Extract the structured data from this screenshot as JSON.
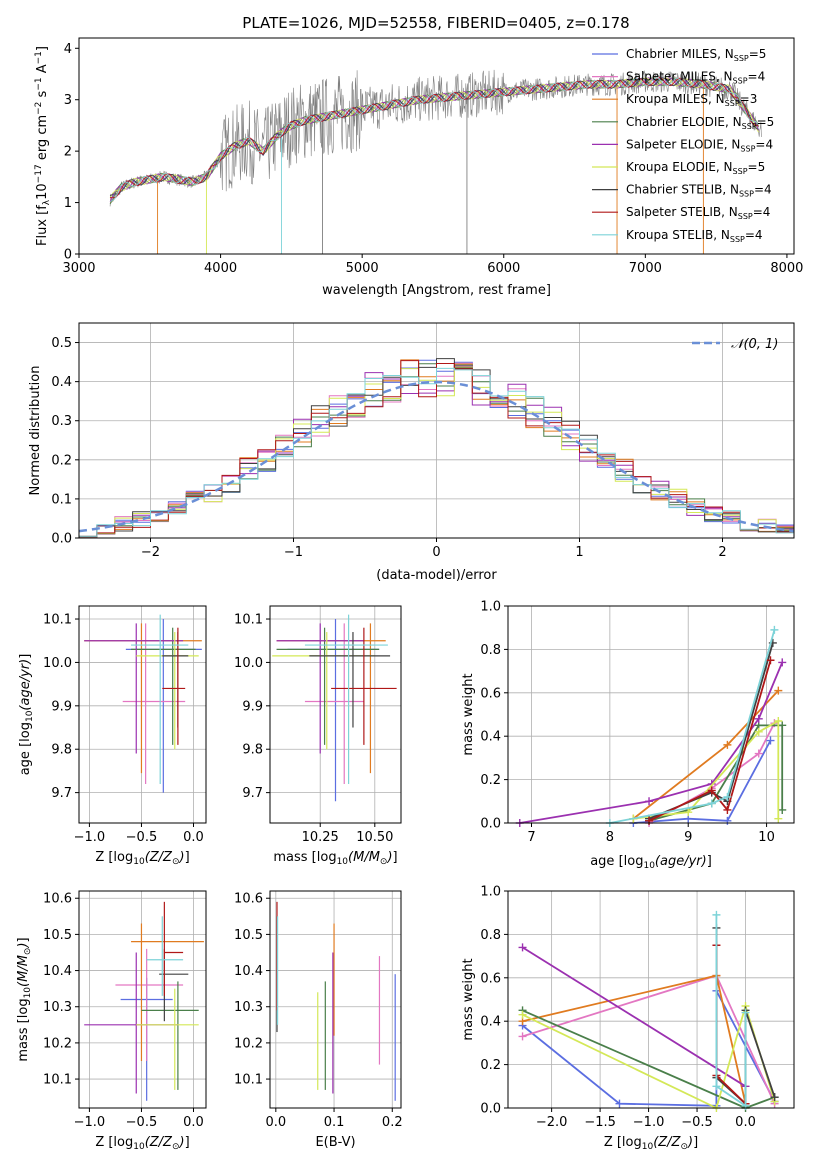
{
  "figure_title": "PLATE=1026, MJD=52558, FIBERID=0405, z=0.178",
  "colors": {
    "chabrier_miles": "#5b6ee1",
    "salpeter_miles": "#e377c2",
    "kroupa_miles": "#e07b20",
    "chabrier_elodie": "#4a7f4a",
    "salpeter_elodie": "#9b30b0",
    "kroupa_elodie": "#d4e857",
    "chabrier_stelib": "#404040",
    "salpeter_stelib": "#b01818",
    "kroupa_stelib": "#7dd3d8",
    "data": "#808080",
    "normal": "#6a8fd6",
    "grid": "#b0b0b0"
  },
  "chart_data": [
    {
      "id": "spectrum",
      "type": "line",
      "xlabel": "wavelength [Angstrom, rest frame]",
      "ylabel": "Flux [f",
      "xlim": [
        3000,
        8050
      ],
      "ylim": [
        0,
        4.2
      ],
      "xticks": [
        "3000",
        "4000",
        "5000",
        "6000",
        "7000",
        "8000"
      ],
      "yticks": [
        "0",
        "1",
        "2",
        "3",
        "4"
      ],
      "legend": [
        "Chabrier MILES, NSSP=5",
        "Salpeter MILES, NSSP=4",
        "Kroupa MILES, NSSP=3",
        "Chabrier ELODIE, NSSP=5",
        "Salpeter ELODIE, NSSP=4",
        "Kroupa ELODIE, NSSP=5",
        "Chabrier STELIB, NSSP=4",
        "Salpeter STELIB, NSSP=4",
        "Kroupa STELIB, NSSP=4"
      ],
      "model_x": [
        3220,
        3300,
        3400,
        3500,
        3600,
        3700,
        3800,
        3900,
        4000,
        4100,
        4200,
        4300,
        4400,
        4500,
        4600,
        4700,
        4800,
        4900,
        5000,
        5200,
        5400,
        5600,
        5800,
        6000,
        6200,
        6400,
        6600,
        6800,
        7000,
        7200,
        7400,
        7600,
        7800
      ],
      "model_y": [
        1.05,
        1.3,
        1.4,
        1.45,
        1.5,
        1.45,
        1.4,
        1.5,
        1.9,
        2.1,
        2.2,
        2.0,
        2.3,
        2.5,
        2.6,
        2.65,
        2.7,
        2.75,
        2.8,
        2.9,
        3.0,
        3.05,
        3.1,
        3.15,
        3.2,
        3.25,
        3.3,
        3.3,
        3.35,
        3.35,
        3.3,
        3.2,
        2.45
      ]
    },
    {
      "id": "residuals",
      "type": "step",
      "xlabel": "(data-model)/error",
      "ylabel": "Normed distribution",
      "xlim": [
        -2.5,
        2.5
      ],
      "ylim": [
        0,
        0.55
      ],
      "xticks": [
        "−2",
        "−1",
        "0",
        "1",
        "2"
      ],
      "yticks": [
        "0.0",
        "0.1",
        "0.2",
        "0.3",
        "0.4",
        "0.5"
      ],
      "legend": [
        "N(0,1)"
      ],
      "bin_width": 0.125
    },
    {
      "id": "age_vs_Z",
      "type": "errorbar",
      "xlabel": "Z [log",
      "ylabel": "age  [log",
      "xlim": [
        -1.1,
        0.12
      ],
      "ylim": [
        9.63,
        10.13
      ],
      "xticks": [
        "−1.0",
        "−0.5",
        "0.0"
      ],
      "yticks": [
        "9.7",
        "9.8",
        "9.9",
        "10.0",
        "10.1"
      ],
      "points": [
        {
          "x": -0.29,
          "xlo": -0.65,
          "xhi": 0.08,
          "y": 10.03,
          "ylo": 9.7,
          "yhi": 10.1,
          "c": "chabrier_miles"
        },
        {
          "x": -0.46,
          "xlo": -0.68,
          "xhi": -0.08,
          "y": 9.91,
          "ylo": 9.72,
          "yhi": 10.09,
          "c": "salpeter_miles"
        },
        {
          "x": -0.5,
          "xlo": -1.05,
          "xhi": 0.08,
          "y": 10.05,
          "ylo": 9.745,
          "yhi": 10.09,
          "c": "kroupa_miles"
        },
        {
          "x": -0.2,
          "xlo": -0.6,
          "xhi": 0.02,
          "y": 10.03,
          "ylo": 9.81,
          "yhi": 10.08,
          "c": "chabrier_elodie"
        },
        {
          "x": -0.55,
          "xlo": -1.05,
          "xhi": -0.1,
          "y": 10.05,
          "ylo": 9.79,
          "yhi": 10.09,
          "c": "salpeter_elodie"
        },
        {
          "x": -0.18,
          "xlo": -0.55,
          "xhi": 0.05,
          "y": 10.015,
          "ylo": 9.8,
          "yhi": 10.07,
          "c": "kroupa_elodie"
        },
        {
          "x": -0.15,
          "xlo": -0.3,
          "xhi": -0.05,
          "y": 10.015,
          "ylo": 9.85,
          "yhi": 10.07,
          "c": "chabrier_stelib"
        },
        {
          "x": -0.15,
          "xlo": -0.3,
          "xhi": -0.08,
          "y": 9.94,
          "ylo": 9.81,
          "yhi": 10.08,
          "c": "salpeter_stelib"
        },
        {
          "x": -0.32,
          "xlo": -0.6,
          "xhi": -0.05,
          "y": 10.04,
          "ylo": 9.72,
          "yhi": 10.11,
          "c": "kroupa_stelib"
        }
      ]
    },
    {
      "id": "age_vs_mass",
      "type": "errorbar",
      "xlabel": "mass [log",
      "ylabel": "",
      "xlim": [
        10.02,
        10.62
      ],
      "ylim": [
        9.63,
        10.13
      ],
      "xticks": [
        "10.25",
        "10.50"
      ],
      "yticks": [
        "9.7",
        "9.8",
        "9.9",
        "10.0",
        "10.1"
      ],
      "points": [
        {
          "x": 10.32,
          "xlo": 10.1,
          "xhi": 10.52,
          "y": 10.03,
          "ylo": 9.68,
          "yhi": 10.1,
          "c": "chabrier_miles"
        },
        {
          "x": 10.36,
          "xlo": 10.18,
          "xhi": 10.45,
          "y": 9.91,
          "ylo": 9.72,
          "yhi": 10.09,
          "c": "salpeter_miles"
        },
        {
          "x": 10.48,
          "xlo": 10.05,
          "xhi": 10.55,
          "y": 10.05,
          "ylo": 9.745,
          "yhi": 10.09,
          "c": "kroupa_miles"
        },
        {
          "x": 10.27,
          "xlo": 10.05,
          "xhi": 10.52,
          "y": 10.03,
          "ylo": 9.81,
          "yhi": 10.08,
          "c": "chabrier_elodie"
        },
        {
          "x": 10.25,
          "xlo": 10.05,
          "xhi": 10.45,
          "y": 10.05,
          "ylo": 9.79,
          "yhi": 10.09,
          "c": "salpeter_elodie"
        },
        {
          "x": 10.28,
          "xlo": 10.03,
          "xhi": 10.5,
          "y": 10.015,
          "ylo": 9.8,
          "yhi": 10.07,
          "c": "kroupa_elodie"
        },
        {
          "x": 10.4,
          "xlo": 10.2,
          "xhi": 10.57,
          "y": 10.015,
          "ylo": 9.85,
          "yhi": 10.07,
          "c": "chabrier_stelib"
        },
        {
          "x": 10.45,
          "xlo": 10.3,
          "xhi": 10.6,
          "y": 9.94,
          "ylo": 9.81,
          "yhi": 10.08,
          "c": "salpeter_stelib"
        },
        {
          "x": 10.38,
          "xlo": 10.18,
          "xhi": 10.56,
          "y": 10.04,
          "ylo": 9.72,
          "yhi": 10.11,
          "c": "kroupa_stelib"
        }
      ]
    },
    {
      "id": "massweight_vs_age",
      "type": "line",
      "xlabel": "age  [log",
      "ylabel": "mass weight",
      "xlim": [
        6.7,
        10.35
      ],
      "ylim": [
        0,
        1.0
      ],
      "xticks": [
        "7",
        "8",
        "9",
        "10"
      ],
      "yticks": [
        "0.0",
        "0.2",
        "0.4",
        "0.6",
        "0.8",
        "1.0"
      ],
      "series": [
        {
          "c": "chabrier_miles",
          "x": [
            8.3,
            9.0,
            9.5,
            10.05
          ],
          "y": [
            0.0,
            0.02,
            0.01,
            0.38
          ]
        },
        {
          "c": "salpeter_miles",
          "x": [
            8.5,
            9.3,
            9.9,
            10.1
          ],
          "y": [
            0.0,
            0.16,
            0.32,
            0.46
          ]
        },
        {
          "c": "kroupa_miles",
          "x": [
            8.3,
            9.5,
            10.15
          ],
          "y": [
            0.02,
            0.36,
            0.61
          ]
        },
        {
          "c": "chabrier_elodie",
          "x": [
            8.5,
            9.3,
            9.9,
            10.2,
            10.2
          ],
          "y": [
            0.01,
            0.09,
            0.45,
            0.45,
            0.06
          ]
        },
        {
          "c": "salpeter_elodie",
          "x": [
            6.85,
            8.5,
            9.3,
            9.9,
            10.2
          ],
          "y": [
            0.0,
            0.1,
            0.18,
            0.48,
            0.74
          ]
        },
        {
          "c": "kroupa_elodie",
          "x": [
            8.3,
            9.0,
            9.9,
            10.15,
            10.15
          ],
          "y": [
            0.02,
            0.05,
            0.42,
            0.47,
            0.02
          ]
        },
        {
          "c": "chabrier_stelib",
          "x": [
            8.5,
            9.3,
            9.5,
            10.08
          ],
          "y": [
            0.02,
            0.14,
            0.1,
            0.83
          ]
        },
        {
          "c": "salpeter_stelib",
          "x": [
            8.5,
            9.3,
            9.5,
            10.05
          ],
          "y": [
            0.01,
            0.15,
            0.06,
            0.75
          ]
        },
        {
          "c": "kroupa_stelib",
          "x": [
            8.0,
            9.3,
            9.5,
            10.1
          ],
          "y": [
            0.0,
            0.09,
            0.12,
            0.89
          ]
        }
      ]
    },
    {
      "id": "mass_vs_Z",
      "type": "errorbar",
      "xlabel": "Z [log",
      "ylabel": "mass [log",
      "xlim": [
        -1.1,
        0.12
      ],
      "ylim": [
        10.02,
        10.62
      ],
      "xticks": [
        "−1.0",
        "−0.5",
        "0.0"
      ],
      "yticks": [
        "10.1",
        "10.2",
        "10.3",
        "10.4",
        "10.5",
        "10.6"
      ],
      "points": [
        {
          "x": -0.45,
          "xlo": -0.7,
          "xhi": -0.2,
          "y": 10.32,
          "ylo": 10.04,
          "yhi": 10.38,
          "c": "chabrier_miles"
        },
        {
          "x": -0.45,
          "xlo": -0.75,
          "xhi": -0.1,
          "y": 10.36,
          "ylo": 10.15,
          "yhi": 10.46,
          "c": "salpeter_miles"
        },
        {
          "x": -0.5,
          "xlo": -0.6,
          "xhi": 0.1,
          "y": 10.48,
          "ylo": 10.15,
          "yhi": 10.53,
          "c": "kroupa_miles"
        },
        {
          "x": -0.15,
          "xlo": -0.5,
          "xhi": 0.05,
          "y": 10.29,
          "ylo": 10.07,
          "yhi": 10.37,
          "c": "chabrier_elodie"
        },
        {
          "x": -0.55,
          "xlo": -1.05,
          "xhi": -0.15,
          "y": 10.25,
          "ylo": 10.06,
          "yhi": 10.45,
          "c": "salpeter_elodie"
        },
        {
          "x": -0.18,
          "xlo": -0.55,
          "xhi": 0.05,
          "y": 10.25,
          "ylo": 10.07,
          "yhi": 10.35,
          "c": "kroupa_elodie"
        },
        {
          "x": -0.28,
          "xlo": -0.33,
          "xhi": -0.05,
          "y": 10.39,
          "ylo": 10.26,
          "yhi": 10.46,
          "c": "chabrier_stelib"
        },
        {
          "x": -0.28,
          "xlo": -0.28,
          "xhi": -0.1,
          "y": 10.45,
          "ylo": 10.33,
          "yhi": 10.59,
          "c": "salpeter_stelib"
        },
        {
          "x": -0.3,
          "xlo": -0.45,
          "xhi": -0.1,
          "y": 10.43,
          "ylo": 10.33,
          "yhi": 10.55,
          "c": "kroupa_stelib"
        }
      ]
    },
    {
      "id": "mass_vs_ebv",
      "type": "errorbar",
      "xlabel": "E(B-V)",
      "ylabel": "",
      "xlim": [
        -0.01,
        0.215
      ],
      "ylim": [
        10.02,
        10.62
      ],
      "xticks": [
        "0.0",
        "0.1",
        "0.2"
      ],
      "yticks": [
        "10.1",
        "10.2",
        "10.3",
        "10.4",
        "10.5",
        "10.6"
      ],
      "points": [
        {
          "x": 0.205,
          "ylo": 10.04,
          "yhi": 10.39,
          "c": "chabrier_miles"
        },
        {
          "x": 0.178,
          "ylo": 10.14,
          "yhi": 10.44,
          "c": "salpeter_miles"
        },
        {
          "x": 0.1,
          "ylo": 10.22,
          "yhi": 10.53,
          "c": "kroupa_miles"
        },
        {
          "x": 0.085,
          "ylo": 10.07,
          "yhi": 10.37,
          "c": "chabrier_elodie"
        },
        {
          "x": 0.098,
          "ylo": 10.06,
          "yhi": 10.45,
          "c": "salpeter_elodie"
        },
        {
          "x": 0.072,
          "ylo": 10.07,
          "yhi": 10.34,
          "c": "kroupa_elodie"
        },
        {
          "x": 0.002,
          "ylo": 10.23,
          "yhi": 10.55,
          "c": "chabrier_stelib"
        },
        {
          "x": 0.002,
          "ylo": 10.29,
          "yhi": 10.59,
          "c": "salpeter_stelib"
        },
        {
          "x": 0.003,
          "ylo": 10.25,
          "yhi": 10.55,
          "c": "kroupa_stelib"
        }
      ]
    },
    {
      "id": "massweight_vs_Z",
      "type": "line",
      "xlabel": "Z [log",
      "ylabel": "mass weight",
      "xlim": [
        -2.45,
        0.5
      ],
      "ylim": [
        0,
        1.0
      ],
      "xticks": [
        "−2.0",
        "−1.5",
        "−1.0",
        "−0.5",
        "0.0"
      ],
      "yticks": [
        "0.0",
        "0.2",
        "0.4",
        "0.6",
        "0.8",
        "1.0"
      ],
      "series": [
        {
          "c": "chabrier_miles",
          "x": [
            -2.3,
            -1.3,
            -0.3,
            -0.3,
            0.3
          ],
          "y": [
            0.38,
            0.02,
            0.01,
            0.54,
            0.03
          ]
        },
        {
          "c": "salpeter_miles",
          "x": [
            -2.3,
            -0.3,
            0.3
          ],
          "y": [
            0.33,
            0.61,
            0.02
          ]
        },
        {
          "c": "kroupa_miles",
          "x": [
            -2.3,
            -0.3,
            0.0
          ],
          "y": [
            0.4,
            0.61,
            0.02
          ]
        },
        {
          "c": "chabrier_elodie",
          "x": [
            -2.3,
            0.0,
            0.3
          ],
          "y": [
            0.45,
            0.0,
            0.05
          ]
        },
        {
          "c": "salpeter_elodie",
          "x": [
            -2.3,
            0.0
          ],
          "y": [
            0.74,
            0.1
          ]
        },
        {
          "c": "kroupa_elodie",
          "x": [
            -2.3,
            -0.3,
            0.0,
            0.3
          ],
          "y": [
            0.43,
            0.0,
            0.47,
            0.03
          ]
        },
        {
          "c": "chabrier_stelib",
          "x": [
            -0.3,
            -0.3,
            0.0,
            0.0,
            0.3
          ],
          "y": [
            0.83,
            0.14,
            0.02,
            0.45,
            0.05
          ]
        },
        {
          "c": "salpeter_stelib",
          "x": [
            -0.3,
            -0.3,
            0.0
          ],
          "y": [
            0.75,
            0.15,
            0.02
          ]
        },
        {
          "c": "kroupa_stelib",
          "x": [
            -0.3,
            -0.3,
            0.0,
            0.0
          ],
          "y": [
            0.89,
            0.1,
            0.01,
            0.44
          ]
        }
      ]
    }
  ]
}
